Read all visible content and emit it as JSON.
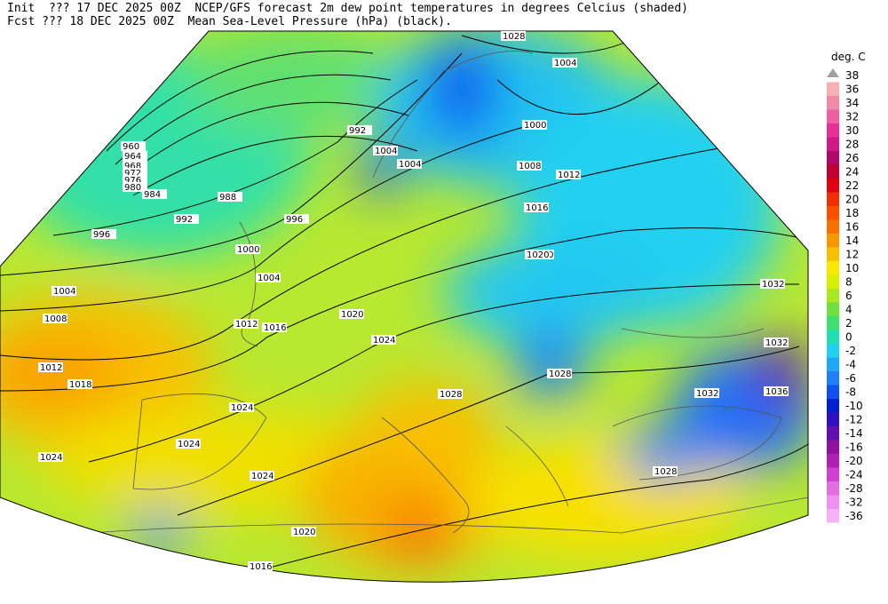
{
  "header": {
    "line1": "Init  ??? 17 DEC 2025 00Z  NCEP/GFS forecast 2m dew point temperatures in degrees Celcius (shaded)",
    "line2": "Fcst ??? 18 DEC 2025 00Z  Mean Sea-Level Pressure (hPa) (black)."
  },
  "legend": {
    "title": "deg. C",
    "items": [
      {
        "value": 38,
        "color": "#a0a0a0"
      },
      {
        "value": 36,
        "color": "#f8b0b0"
      },
      {
        "value": 34,
        "color": "#f088a8"
      },
      {
        "value": 32,
        "color": "#f060a0"
      },
      {
        "value": 30,
        "color": "#e83098"
      },
      {
        "value": 28,
        "color": "#d01888"
      },
      {
        "value": 26,
        "color": "#b00868"
      },
      {
        "value": 24,
        "color": "#c00030"
      },
      {
        "value": 22,
        "color": "#e00010"
      },
      {
        "value": 20,
        "color": "#f03000"
      },
      {
        "value": 18,
        "color": "#f85000"
      },
      {
        "value": 16,
        "color": "#f87000"
      },
      {
        "value": 14,
        "color": "#f89800"
      },
      {
        "value": 12,
        "color": "#f8c000"
      },
      {
        "value": 10,
        "color": "#f8e800"
      },
      {
        "value": 8,
        "color": "#d8f000"
      },
      {
        "value": 6,
        "color": "#a8e820"
      },
      {
        "value": 4,
        "color": "#70e040"
      },
      {
        "value": 2,
        "color": "#40e070"
      },
      {
        "value": 0,
        "color": "#20e0b0"
      },
      {
        "value": -2,
        "color": "#20d0f0"
      },
      {
        "value": -4,
        "color": "#20a8f8"
      },
      {
        "value": -6,
        "color": "#2080f8"
      },
      {
        "value": -8,
        "color": "#1050f0"
      },
      {
        "value": -10,
        "color": "#0020d0"
      },
      {
        "value": -12,
        "color": "#3010c0"
      },
      {
        "value": -14,
        "color": "#6010b0"
      },
      {
        "value": -16,
        "color": "#9010a0"
      },
      {
        "value": -20,
        "color": "#b020b0"
      },
      {
        "value": -24,
        "color": "#d040d0"
      },
      {
        "value": -28,
        "color": "#e070e0"
      },
      {
        "value": -32,
        "color": "#f090f0"
      },
      {
        "value": -36,
        "color": "#f8b0f8"
      }
    ]
  },
  "isobar_labels": [
    960,
    964,
    968,
    972,
    976,
    980,
    984,
    988,
    992,
    996,
    992,
    996,
    1000,
    1004,
    1004,
    1008,
    1012,
    1016,
    1020,
    1024,
    1028,
    1024,
    1018,
    1012,
    1020,
    1024,
    1024,
    1020,
    1016,
    1028,
    1028,
    1032,
    1032,
    1036,
    1032,
    1028,
    1024,
    1020,
    1016,
    1012,
    1008,
    1004,
    1000,
    1004,
    1004
  ]
}
